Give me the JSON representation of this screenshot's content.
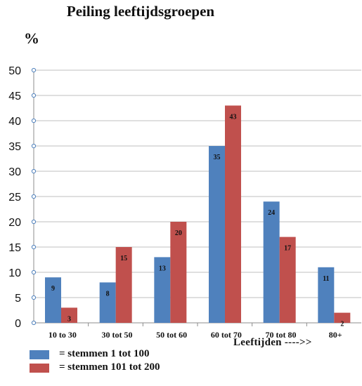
{
  "colors": {
    "series1": "#4f81bd",
    "series2": "#c0504d",
    "grid": "#bfbfbf",
    "marker": "#4f81bd"
  },
  "legend": [
    {
      "label": "= stemmen 1 tot 100",
      "color": "#4f81bd"
    },
    {
      "label": " = stemmen 101 tot 200",
      "color": "#c0504d"
    }
  ],
  "chart_data": {
    "type": "bar",
    "title": "Peiling leeftijdsgroepen",
    "ylabel": "%",
    "xlabel": "Leeftijden  ---->>",
    "categories": [
      "10 to 30",
      "30 tot 50",
      "50 tot 60",
      "60 tot 70",
      "70 tot 80",
      "80+"
    ],
    "series": [
      {
        "values": [
          9,
          8,
          13,
          35,
          24,
          11
        ]
      },
      {
        "values": [
          3,
          15,
          20,
          43,
          17,
          2
        ]
      }
    ],
    "ylim": [
      0,
      50
    ],
    "yticks": [
      0,
      5,
      10,
      15,
      20,
      25,
      30,
      35,
      40,
      45,
      50
    ],
    "grid": true,
    "legend_position": "bottom-left"
  }
}
